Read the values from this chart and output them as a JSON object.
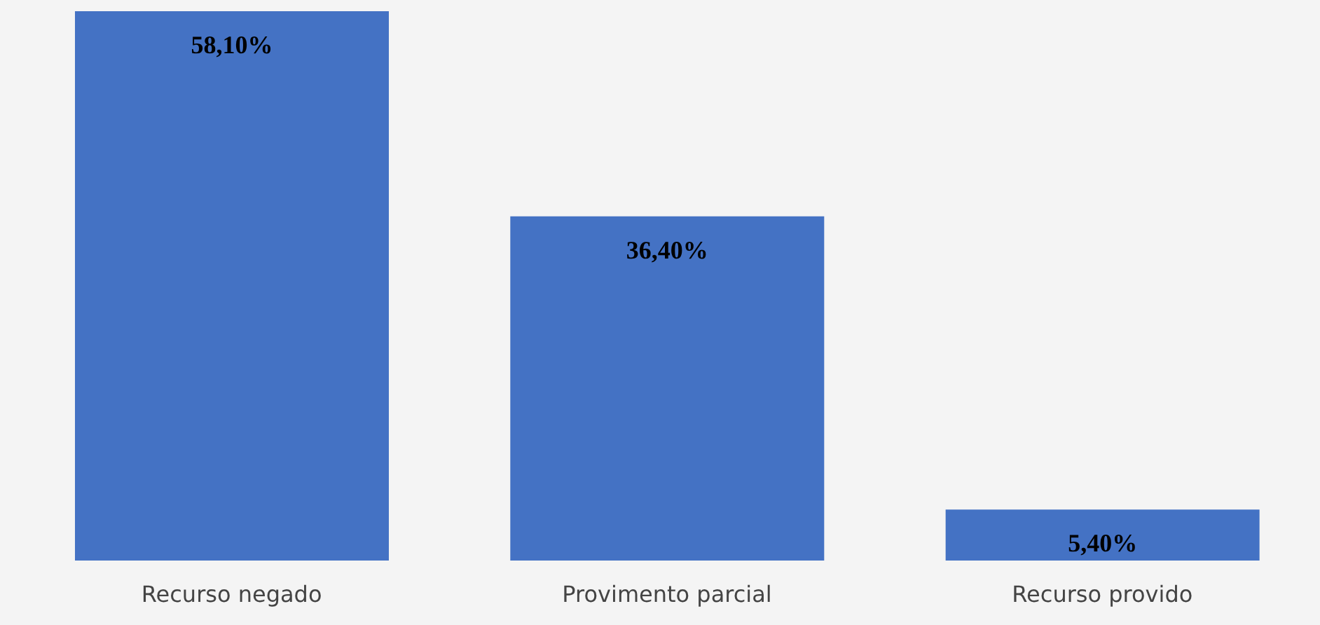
{
  "chart_data": {
    "type": "bar",
    "categories": [
      "Recurso negado",
      "Provimento parcial",
      "Recurso provido"
    ],
    "values": [
      58.1,
      36.4,
      5.4
    ],
    "value_labels": [
      "58,10%",
      "36,40%",
      "5,40%"
    ],
    "color": "#4472c4"
  }
}
